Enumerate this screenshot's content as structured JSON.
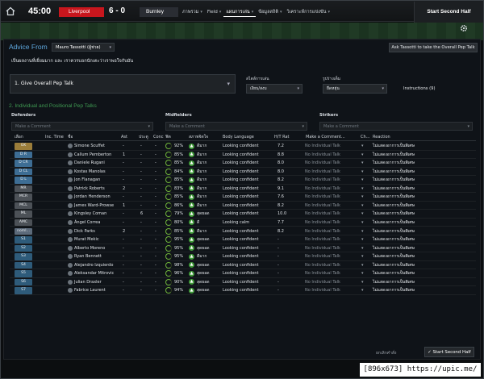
{
  "topbar": {
    "clock": "45:00",
    "home_team": "Liverpool",
    "score": "6 - 0",
    "away_team": "Burnley",
    "menu": [
      "ภาพรวม",
      "Field",
      "แผนการเล่น",
      "ข้อมูลสถิติ",
      "วิเคราะห์การแข่งขัน"
    ],
    "start_button": "Start Second Half"
  },
  "advice": {
    "title": "Advice From",
    "coach": "Mauro Tassotti (ผู้ช่วย)",
    "ask_button": "Ask Tassotti to take the Overall Pep Talk",
    "text": "เป็นผลงานที่เยี่ยมมาก และ เราควรบอกนักเตะว่าเราพอใจกับมัน"
  },
  "overall_talk": {
    "label": "1. Give Overall Pep Talk",
    "tone_label": "สไตล์การเล่น",
    "tone_value": "เงียบ/สงบ",
    "gesture_label": "รูปร่างเต็ม",
    "gesture_value": "ยืดหยุ่น",
    "instructions": "Instructions (9)"
  },
  "individual": {
    "section_title": "2. Individual and Positional Pep Talks",
    "groups": [
      {
        "label": "Defenders",
        "placeholder": "Make a Comment"
      },
      {
        "label": "Midfielders",
        "placeholder": "Make a Comment"
      },
      {
        "label": "Strikers",
        "placeholder": "Make a Comment"
      }
    ]
  },
  "table": {
    "headers": [
      "เลือก",
      "Inc. Time",
      "ชื่อ",
      "Ast",
      "ประตู",
      "Conc",
      "ฟิต",
      "สภาพจิตใจ",
      "Body Language",
      "H/T Rat",
      "Make a Comment...",
      "Ch...",
      "Reaction"
    ],
    "rows": [
      {
        "pos": "GK",
        "cls": "gk",
        "name": "Simone Scuffet",
        "ast": "-",
        "gls": "-",
        "conc": "-",
        "cond": "92%",
        "morale": "ดีมาก",
        "body": "Looking confident",
        "rat": "7.2",
        "comment": "No Individual Talk",
        "reaction": "ไม่แสดงอาการเป็นพิเศษ"
      },
      {
        "pos": "D R",
        "cls": "def",
        "name": "Callum Pemberton",
        "ast": "1",
        "gls": "-",
        "conc": "-",
        "cond": "85%",
        "morale": "ดีมาก",
        "body": "Looking confident",
        "rat": "8.8",
        "comment": "No Individual Talk",
        "reaction": "ไม่แสดงอาการเป็นพิเศษ"
      },
      {
        "pos": "D CR",
        "cls": "def",
        "name": "Daniele Rugani",
        "ast": "-",
        "gls": "-",
        "conc": "-",
        "cond": "85%",
        "morale": "ดีมาก",
        "body": "Looking confident",
        "rat": "8.0",
        "comment": "No Individual Talk",
        "reaction": "ไม่แสดงอาการเป็นพิเศษ"
      },
      {
        "pos": "D CL",
        "cls": "def",
        "name": "Kostas Manolas",
        "ast": "-",
        "gls": "-",
        "conc": "-",
        "cond": "84%",
        "morale": "ดีมาก",
        "body": "Looking confident",
        "rat": "8.0",
        "comment": "No Individual Talk",
        "reaction": "ไม่แสดงอาการเป็นพิเศษ"
      },
      {
        "pos": "D L",
        "cls": "def",
        "name": "Jon Flanagan",
        "ast": "-",
        "gls": "-",
        "conc": "-",
        "cond": "85%",
        "morale": "ดีมาก",
        "body": "Looking confident",
        "rat": "8.2",
        "comment": "No Individual Talk",
        "reaction": "ไม่แสดงอาการเป็นพิเศษ"
      },
      {
        "pos": "MR",
        "cls": "mid",
        "name": "Patrick Roberts",
        "ast": "2",
        "gls": "-",
        "conc": "-",
        "cond": "83%",
        "morale": "ดีมาก",
        "body": "Looking confident",
        "rat": "9.1",
        "comment": "No Individual Talk",
        "reaction": "ไม่แสดงอาการเป็นพิเศษ"
      },
      {
        "pos": "MCR",
        "cls": "mid",
        "name": "Jordan Henderson",
        "ast": "-",
        "gls": "-",
        "conc": "-",
        "cond": "85%",
        "morale": "ดีมาก",
        "body": "Looking confident",
        "rat": "7.6",
        "comment": "No Individual Talk",
        "reaction": "ไม่แสดงอาการเป็นพิเศษ"
      },
      {
        "pos": "MCL",
        "cls": "mid",
        "name": "James Ward-Prowse",
        "ast": "1",
        "gls": "-",
        "conc": "-",
        "cond": "86%",
        "morale": "ดีมาก",
        "body": "Looking confident",
        "rat": "8.2",
        "comment": "No Individual Talk",
        "reaction": "ไม่แสดงอาการเป็นพิเศษ"
      },
      {
        "pos": "ML",
        "cls": "mid",
        "name": "Kingsley Coman",
        "ast": "-",
        "gls": "6",
        "conc": "-",
        "cond": "79%",
        "morale": "สุดยอด",
        "body": "Looking confident",
        "rat": "10.0",
        "comment": "No Individual Talk",
        "reaction": "ไม่แสดงอาการเป็นพิเศษ"
      },
      {
        "pos": "AMC",
        "cls": "mid",
        "name": "Ángel Correa",
        "ast": "-",
        "gls": "-",
        "conc": "-",
        "cond": "80%",
        "morale": "ดี",
        "body": "Looking calm",
        "rat": "7.7",
        "comment": "No Individual Talk",
        "reaction": "ไม่แสดงอาการเป็นพิเศษ"
      },
      {
        "pos": "noml...",
        "cls": "cur",
        "name": "Dick Parks",
        "ast": "2",
        "gls": "-",
        "conc": "-",
        "cond": "85%",
        "morale": "ดีมาก",
        "body": "Looking confident",
        "rat": "8.2",
        "comment": "No Individual Talk",
        "reaction": "ไม่แสดงอาการเป็นพิเศษ"
      },
      {
        "pos": "S1",
        "cls": "sub",
        "name": "Murat Mekic",
        "ast": "-",
        "gls": "-",
        "conc": "-",
        "cond": "95%",
        "morale": "สุดยอด",
        "body": "Looking confident",
        "rat": "-",
        "comment": "No Individual Talk",
        "reaction": "ไม่แสดงอาการเป็นพิเศษ"
      },
      {
        "pos": "S2",
        "cls": "sub",
        "name": "Alberto Moreno",
        "ast": "-",
        "gls": "-",
        "conc": "-",
        "cond": "95%",
        "morale": "สุดยอด",
        "body": "Looking confident",
        "rat": "-",
        "comment": "No Individual Talk",
        "reaction": "ไม่แสดงอาการเป็นพิเศษ"
      },
      {
        "pos": "S3",
        "cls": "sub",
        "name": "Ryan Bennett",
        "ast": "-",
        "gls": "-",
        "conc": "-",
        "cond": "95%",
        "morale": "ดีมาก",
        "body": "Looking confident",
        "rat": "-",
        "comment": "No Individual Talk",
        "reaction": "ไม่แสดงอาการเป็นพิเศษ"
      },
      {
        "pos": "S4",
        "cls": "sub",
        "name": "Alejandro Izquierdo",
        "ast": "-",
        "gls": "-",
        "conc": "-",
        "cond": "98%",
        "morale": "สุดยอด",
        "body": "Looking confident",
        "rat": "-",
        "comment": "No Individual Talk",
        "reaction": "ไม่แสดงอาการเป็นพิเศษ"
      },
      {
        "pos": "S5",
        "cls": "sub",
        "name": "Aleksandar Mitrovic",
        "ast": "-",
        "gls": "-",
        "conc": "-",
        "cond": "96%",
        "morale": "สุดยอด",
        "body": "Looking confident",
        "rat": "-",
        "comment": "No Individual Talk",
        "reaction": "ไม่แสดงอาการเป็นพิเศษ"
      },
      {
        "pos": "S6",
        "cls": "sub",
        "name": "Julian Draxler",
        "ast": "-",
        "gls": "-",
        "conc": "-",
        "cond": "90%",
        "morale": "สุดยอด",
        "body": "Looking confident",
        "rat": "-",
        "comment": "No Individual Talk",
        "reaction": "ไม่แสดงอาการเป็นพิเศษ"
      },
      {
        "pos": "S7",
        "cls": "sub",
        "name": "Fabrice Laurent",
        "ast": "-",
        "gls": "-",
        "conc": "-",
        "cond": "94%",
        "morale": "สุดยอด",
        "body": "Looking confident",
        "rat": "-",
        "comment": "No Individual Talk",
        "reaction": "ไม่แสดงอาการเป็นพิเศษ"
      }
    ]
  },
  "footer": {
    "cancel": "ยกเลิกคำสั่ง",
    "start": "Start Second Half"
  },
  "watermark": "[896x673] https://upic.me/",
  "colors": {
    "home": "#c8161d",
    "accent_blue": "#5fa8de",
    "accent_green": "#3f9a52",
    "morale": "#3f9a38"
  },
  "icons": [
    "home-icon",
    "gear-icon",
    "chevron-down-icon",
    "checkmark-icon"
  ]
}
